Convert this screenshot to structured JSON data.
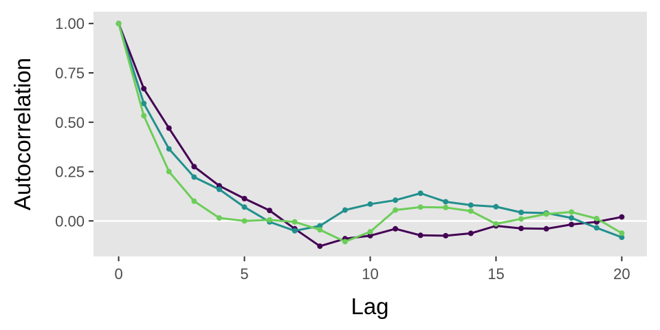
{
  "chart_data": {
    "type": "line",
    "xlabel": "Lag",
    "ylabel": "Autocorrelation",
    "xlim": [
      -1,
      21
    ],
    "ylim": [
      -0.18,
      1.06
    ],
    "x_ticks": [
      0,
      5,
      10,
      15,
      20
    ],
    "x_tick_labels": [
      "0",
      "5",
      "10",
      "15",
      "20"
    ],
    "y_ticks": [
      0,
      0.25,
      0.5,
      0.75,
      1.0
    ],
    "y_tick_labels": [
      "0.00",
      "0.25",
      "0.50",
      "0.75",
      "1.00"
    ],
    "grid": false,
    "panel_background": "#e5e5e5",
    "zero_line_color": "#ffffff",
    "x": [
      0,
      1,
      2,
      3,
      4,
      5,
      6,
      7,
      8,
      9,
      10,
      11,
      12,
      13,
      14,
      15,
      16,
      17,
      18,
      19,
      20
    ],
    "series": [
      {
        "color": "#440154",
        "values": [
          1.0,
          0.67,
          0.47,
          0.275,
          0.178,
          0.113,
          0.053,
          -0.04,
          -0.128,
          -0.09,
          -0.075,
          -0.04,
          -0.073,
          -0.075,
          -0.063,
          -0.025,
          -0.038,
          -0.04,
          -0.018,
          -0.005,
          0.02
        ]
      },
      {
        "color": "#21908d",
        "values": [
          1.0,
          0.595,
          0.365,
          0.222,
          0.16,
          0.07,
          -0.005,
          -0.05,
          -0.025,
          0.055,
          0.085,
          0.105,
          0.14,
          0.097,
          0.08,
          0.072,
          0.043,
          0.04,
          0.015,
          -0.035,
          -0.083
        ]
      },
      {
        "color": "#6ccd59",
        "values": [
          1.0,
          0.533,
          0.25,
          0.1,
          0.015,
          0.0,
          0.005,
          -0.005,
          -0.045,
          -0.105,
          -0.055,
          0.055,
          0.07,
          0.068,
          0.05,
          -0.015,
          0.01,
          0.035,
          0.045,
          0.012,
          -0.062
        ]
      }
    ]
  }
}
